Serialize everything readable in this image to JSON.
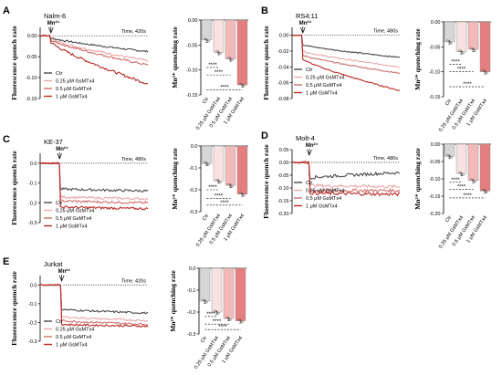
{
  "colors": {
    "ctr": "#4a4a4a",
    "g025": "#e8a8a8",
    "g05": "#cf6f6f",
    "g1": "#b82b26",
    "bar_ctr": "#d6d6d6",
    "bar_025": "#f7e1e1",
    "bar_05": "#f2b9b9",
    "bar_1": "#e57f7f"
  },
  "common": {
    "trace_ylabel": "Fluorescence quench rate",
    "bar_ylabel": "Mn²⁺ quenching rate",
    "mn_label": "Mn²⁺",
    "legend": [
      "Ctr",
      "0.25 μM GsMTx4",
      "0.5 μM GsMTx4",
      "1 μM GsMTx4"
    ],
    "bar_categories": [
      "Ctr",
      "0.25 μM GsMTx4",
      "0.5 μM GsMTx4",
      "1 μM GsMTx4"
    ],
    "sig_label": "****"
  },
  "chart_data": [
    {
      "panel": "A",
      "type": "line",
      "title": "Nalm-6",
      "time_label": "Time, 420s",
      "ylim": [
        -0.15,
        0.02
      ],
      "yticks": [
        "0.00",
        "-0.05",
        "-0.10",
        "-0.15"
      ],
      "ytick_values": [
        0,
        -0.05,
        -0.1,
        -0.15
      ],
      "mn_at": 0.1,
      "series": [
        {
          "name": "Ctr",
          "baseline": 0.0,
          "end": -0.038,
          "drop": 0.005,
          "noise": 0.004
        },
        {
          "name": "0.25 μM GsMTx4",
          "baseline": 0.0,
          "end": -0.06,
          "drop": 0.008,
          "noise": 0.005
        },
        {
          "name": "0.5 μM GsMTx4",
          "baseline": 0.0,
          "end": -0.07,
          "drop": 0.01,
          "noise": 0.005
        },
        {
          "name": "1 μM GsMTx4",
          "baseline": 0.0,
          "end": -0.115,
          "drop": 0.015,
          "noise": 0.006
        }
      ],
      "bar": {
        "type": "bar",
        "ylim": [
          -0.15,
          0.0
        ],
        "yticks": [
          "0.00",
          "-0.05",
          "-0.10",
          "-0.15"
        ],
        "ytick_values": [
          0,
          -0.05,
          -0.1,
          -0.15
        ],
        "values": [
          -0.04,
          -0.065,
          -0.078,
          -0.13
        ],
        "sig": [
          {
            "from": 0,
            "to": 1,
            "y": -0.095
          },
          {
            "from": 0,
            "to": 2,
            "y": -0.11
          },
          {
            "from": 0,
            "to": 3,
            "y": -0.14
          }
        ]
      }
    },
    {
      "panel": "B",
      "type": "line",
      "title": "RS4;11",
      "time_label": "Time, 480s",
      "ylim": [
        -0.08,
        0.01
      ],
      "yticks": [
        "0.00",
        "-0.02",
        "-0.04",
        "-0.06",
        "-0.08"
      ],
      "ytick_values": [
        0,
        -0.02,
        -0.04,
        -0.06,
        -0.08
      ],
      "mn_at": 0.1,
      "series": [
        {
          "name": "Ctr",
          "baseline": 0.0,
          "end": -0.028,
          "drop": 0.012,
          "noise": 0.0015
        },
        {
          "name": "0.25 μM GsMTx4",
          "baseline": 0.0,
          "end": -0.04,
          "drop": 0.02,
          "noise": 0.0015
        },
        {
          "name": "0.5 μM GsMTx4",
          "baseline": 0.0,
          "end": -0.048,
          "drop": 0.025,
          "noise": 0.0015
        },
        {
          "name": "1 μM GsMTx4",
          "baseline": 0.0,
          "end": -0.07,
          "drop": 0.03,
          "noise": 0.0015
        }
      ],
      "bar": {
        "type": "bar",
        "ylim": [
          -0.15,
          0.0
        ],
        "yticks": [
          "0.00",
          "-0.05",
          "-0.10",
          "-0.15"
        ],
        "ytick_values": [
          0,
          -0.05,
          -0.1,
          -0.15
        ],
        "values": [
          -0.04,
          -0.06,
          -0.055,
          -0.1
        ],
        "sig": [
          {
            "from": 0,
            "to": 1,
            "y": -0.085
          },
          {
            "from": 0,
            "to": 2,
            "y": -0.1
          },
          {
            "from": 0,
            "to": 3,
            "y": -0.13
          }
        ]
      }
    },
    {
      "panel": "C",
      "type": "line",
      "title": "KE-37",
      "time_label": "Time, 480s",
      "ylim": [
        -0.3,
        0.05
      ],
      "yticks": [
        "0.0",
        "-0.1",
        "-0.2",
        "-0.3"
      ],
      "ytick_values": [
        0,
        -0.1,
        -0.2,
        -0.3
      ],
      "mn_at": 0.18,
      "series": [
        {
          "name": "Ctr",
          "baseline": 0.0,
          "end": -0.14,
          "drop": 0.13,
          "noise": 0.012
        },
        {
          "name": "0.25 μM GsMTx4",
          "baseline": 0.0,
          "end": -0.18,
          "drop": 0.17,
          "noise": 0.012
        },
        {
          "name": "0.5 μM GsMTx4",
          "baseline": 0.0,
          "end": -0.2,
          "drop": 0.19,
          "noise": 0.012
        },
        {
          "name": "1 μM GsMTx4",
          "baseline": 0.0,
          "end": -0.23,
          "drop": 0.22,
          "noise": 0.012
        }
      ],
      "bar": {
        "type": "bar",
        "ylim": [
          -0.3,
          0.0
        ],
        "yticks": [
          "0.0",
          "-0.1",
          "-0.2",
          "-0.3"
        ],
        "ytick_values": [
          0,
          -0.1,
          -0.2,
          -0.3
        ],
        "values": [
          -0.08,
          -0.16,
          -0.18,
          -0.22
        ],
        "sig": [
          {
            "from": 0,
            "to": 1,
            "y": -0.2
          },
          {
            "from": 0,
            "to": 2,
            "y": -0.24
          },
          {
            "from": 0,
            "to": 3,
            "y": -0.27
          }
        ]
      }
    },
    {
      "panel": "D",
      "type": "line",
      "title": "Molt-4",
      "time_label": "Time, 480s",
      "ylim": [
        -0.2,
        0.05
      ],
      "yticks": [
        "0.05",
        "0.00",
        "-0.05",
        "-0.10",
        "-0.15",
        "-0.20"
      ],
      "ytick_values": [
        0.05,
        0,
        -0.05,
        -0.1,
        -0.15,
        -0.2
      ],
      "mn_at": 0.16,
      "series": [
        {
          "name": "Ctr",
          "baseline": 0.0,
          "end": -0.04,
          "drop": 0.06,
          "noise": 0.012
        },
        {
          "name": "0.25 μM GsMTx4",
          "baseline": 0.0,
          "end": -0.095,
          "drop": 0.09,
          "noise": 0.012
        },
        {
          "name": "0.5 μM GsMTx4",
          "baseline": 0.0,
          "end": -0.11,
          "drop": 0.11,
          "noise": 0.012
        },
        {
          "name": "1 μM GsMTx4",
          "baseline": 0.0,
          "end": -0.125,
          "drop": 0.12,
          "noise": 0.012
        }
      ],
      "bar": {
        "type": "bar",
        "ylim": [
          -0.2,
          0.0
        ],
        "yticks": [
          "0.00",
          "-0.05",
          "-0.10",
          "-0.15",
          "-0.20"
        ],
        "ytick_values": [
          0,
          -0.05,
          -0.1,
          -0.15,
          -0.2
        ],
        "values": [
          -0.035,
          -0.085,
          -0.105,
          -0.135
        ],
        "sig": [
          {
            "from": 0,
            "to": 1,
            "y": -0.11
          },
          {
            "from": 0,
            "to": 2,
            "y": -0.13
          },
          {
            "from": 0,
            "to": 3,
            "y": -0.155
          }
        ]
      }
    },
    {
      "panel": "E",
      "type": "line",
      "title": "Jurkat",
      "time_label": "Time, 420s",
      "ylim": [
        -0.3,
        0.05
      ],
      "yticks": [
        "0.0",
        "-0.1",
        "-0.2",
        "-0.3"
      ],
      "ytick_values": [
        0,
        -0.1,
        -0.2,
        -0.3
      ],
      "mn_at": 0.2,
      "series": [
        {
          "name": "Ctr",
          "baseline": 0.0,
          "end": -0.15,
          "drop": 0.13,
          "noise": 0.01
        },
        {
          "name": "0.25 μM GsMTx4",
          "baseline": 0.0,
          "end": -0.19,
          "drop": 0.17,
          "noise": 0.01
        },
        {
          "name": "0.5 μM GsMTx4",
          "baseline": 0.0,
          "end": -0.21,
          "drop": 0.19,
          "noise": 0.01
        },
        {
          "name": "1 μM GsMTx4",
          "baseline": 0.0,
          "end": -0.22,
          "drop": 0.21,
          "noise": 0.01
        }
      ],
      "bar": {
        "type": "bar",
        "ylim": [
          -0.3,
          0.0
        ],
        "yticks": [
          "0.0",
          "-0.1",
          "-0.2",
          "-0.3"
        ],
        "ytick_values": [
          0,
          -0.1,
          -0.2,
          -0.3
        ],
        "values": [
          -0.15,
          -0.2,
          -0.23,
          -0.24
        ],
        "sig": [
          {
            "from": 0,
            "to": 1,
            "y": -0.22
          },
          {
            "from": 0,
            "to": 2,
            "y": -0.255
          },
          {
            "from": 0,
            "to": 3,
            "y": -0.28
          }
        ]
      }
    }
  ]
}
